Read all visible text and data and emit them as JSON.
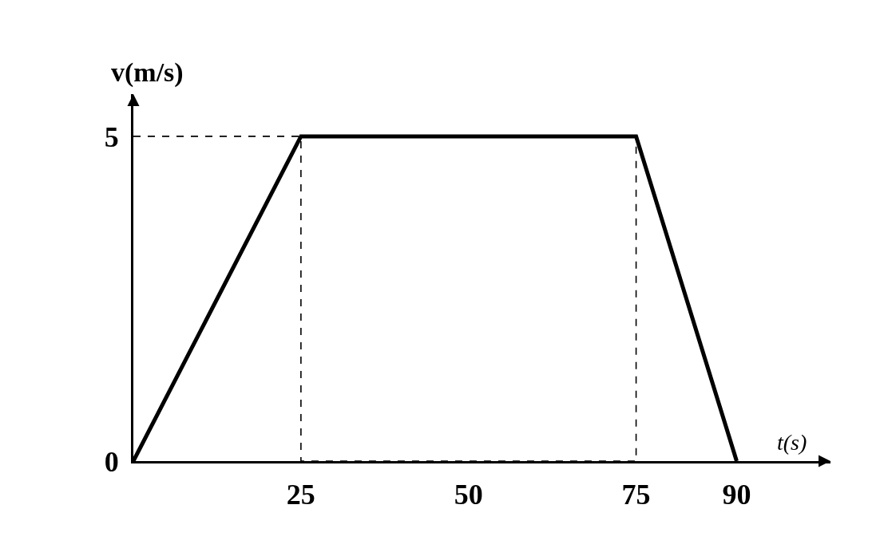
{
  "chart_data": {
    "type": "line",
    "xlabel": "t(s)",
    "ylabel": "v(m/s)",
    "line_style": "solid",
    "xlim": [
      0,
      104
    ],
    "ylim": [
      0,
      5.65
    ],
    "xticks": [
      25,
      50,
      75,
      90
    ],
    "yticks": [
      0,
      5
    ],
    "series": [
      {
        "color": "#000000",
        "x": [
          0,
          25,
          75,
          90
        ],
        "values": [
          0,
          5,
          5,
          0
        ]
      },
      {
        "color": "#000000",
        "line_style": "dashed",
        "x": [
          0,
          25,
          25,
          75,
          75
        ],
        "values": [
          5,
          5,
          0,
          0,
          5
        ]
      }
    ]
  }
}
